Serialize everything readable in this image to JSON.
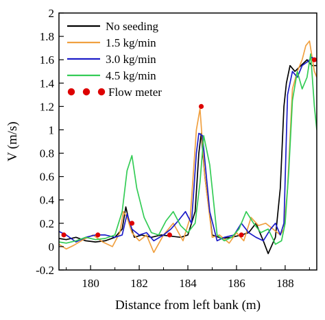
{
  "chart_data": {
    "type": "line",
    "xlabel": "Distance from left bank (m)",
    "ylabel": "V (m/s)",
    "xlim": [
      178.7,
      189.3
    ],
    "ylim": [
      -0.2,
      2.0
    ],
    "x_ticks": [
      180,
      182,
      184,
      186,
      188
    ],
    "x_tick_labels": [
      "180",
      "182",
      "184",
      "186",
      "188"
    ],
    "y_ticks": [
      -0.2,
      0,
      0.2,
      0.4,
      0.6,
      0.8,
      1,
      1.2,
      1.4,
      1.6,
      1.8,
      2
    ],
    "y_tick_labels": [
      "-0.2",
      "0",
      "0.2",
      "0.4",
      "0.6",
      "0.8",
      "1",
      "1.2",
      "1.4",
      "1.6",
      "1.8",
      "2"
    ],
    "grid": false,
    "legend_position": "top-left",
    "series": [
      {
        "name": "No seeding",
        "color": "#000000",
        "x": [
          178.7,
          179.0,
          179.4,
          179.8,
          180.2,
          180.6,
          181.0,
          181.3,
          181.45,
          181.6,
          181.8,
          182.1,
          182.5,
          182.9,
          183.3,
          183.7,
          184.0,
          184.3,
          184.45,
          184.55,
          184.7,
          185.0,
          185.4,
          185.8,
          186.2,
          186.5,
          186.8,
          187.1,
          187.3,
          187.6,
          187.8,
          187.95,
          188.05,
          188.2,
          188.4,
          188.7,
          188.9,
          189.1,
          189.3
        ],
        "y": [
          0.07,
          0.06,
          0.08,
          0.05,
          0.04,
          0.05,
          0.08,
          0.15,
          0.34,
          0.2,
          0.08,
          0.1,
          0.08,
          0.1,
          0.09,
          0.08,
          0.1,
          0.3,
          0.8,
          0.97,
          0.6,
          0.1,
          0.07,
          0.08,
          0.1,
          0.12,
          0.2,
          0.05,
          -0.06,
          0.08,
          0.5,
          1.2,
          1.4,
          1.55,
          1.5,
          1.56,
          1.6,
          1.55,
          1.55
        ]
      },
      {
        "name": "1.5 kg/min",
        "color": "#f0a040",
        "x": [
          178.7,
          179.0,
          179.3,
          179.7,
          180.1,
          180.5,
          180.9,
          181.2,
          181.35,
          181.5,
          181.7,
          182.0,
          182.3,
          182.6,
          183.0,
          183.4,
          183.8,
          184.1,
          184.35,
          184.5,
          184.7,
          185.0,
          185.3,
          185.7,
          186.0,
          186.3,
          186.6,
          186.9,
          187.2,
          187.5,
          187.8,
          187.95,
          188.1,
          188.3,
          188.5,
          188.7,
          188.85,
          189.0,
          189.2,
          189.3
        ],
        "y": [
          0.02,
          -0.02,
          0.01,
          0.06,
          0.1,
          0.04,
          0.0,
          0.12,
          0.3,
          0.25,
          0.12,
          0.05,
          0.1,
          -0.05,
          0.1,
          0.2,
          0.05,
          0.25,
          1.0,
          1.18,
          0.6,
          0.08,
          0.1,
          0.03,
          0.12,
          0.05,
          0.25,
          0.18,
          0.2,
          0.15,
          0.1,
          0.15,
          0.5,
          1.35,
          1.5,
          1.6,
          1.72,
          1.76,
          1.5,
          1.45
        ]
      },
      {
        "name": "3.0 kg/min",
        "color": "#1c1cc8",
        "x": [
          178.7,
          179.0,
          179.4,
          179.8,
          180.2,
          180.6,
          181.0,
          181.3,
          181.5,
          181.7,
          182.0,
          182.3,
          182.6,
          183.0,
          183.3,
          183.6,
          183.9,
          184.15,
          184.35,
          184.45,
          184.6,
          184.9,
          185.2,
          185.5,
          185.9,
          186.2,
          186.5,
          186.8,
          187.1,
          187.4,
          187.6,
          187.8,
          187.95,
          188.1,
          188.3,
          188.5,
          188.7,
          188.9,
          189.1,
          189.3
        ],
        "y": [
          0.13,
          0.1,
          0.04,
          0.08,
          0.1,
          0.1,
          0.08,
          0.1,
          0.28,
          0.15,
          0.1,
          0.12,
          0.05,
          0.1,
          0.15,
          0.22,
          0.3,
          0.2,
          0.8,
          0.97,
          0.95,
          0.3,
          0.05,
          0.08,
          0.1,
          0.2,
          0.12,
          0.08,
          0.05,
          0.15,
          0.2,
          0.1,
          0.2,
          1.3,
          1.5,
          1.45,
          1.55,
          1.58,
          1.62,
          1.6
        ]
      },
      {
        "name": "4.5 kg/min",
        "color": "#33cc55",
        "x": [
          178.7,
          179.0,
          179.4,
          179.8,
          180.2,
          180.6,
          181.0,
          181.3,
          181.5,
          181.7,
          181.9,
          182.2,
          182.5,
          182.8,
          183.1,
          183.4,
          183.7,
          184.0,
          184.3,
          184.5,
          184.65,
          184.9,
          185.2,
          185.5,
          185.8,
          186.1,
          186.4,
          186.7,
          187.0,
          187.3,
          187.6,
          187.85,
          188.0,
          188.15,
          188.3,
          188.5,
          188.7,
          188.9,
          189.05,
          189.2,
          189.3
        ],
        "y": [
          0.04,
          0.03,
          0.05,
          0.08,
          0.06,
          0.07,
          0.1,
          0.3,
          0.65,
          0.78,
          0.5,
          0.25,
          0.12,
          0.1,
          0.22,
          0.3,
          0.18,
          0.12,
          0.2,
          0.55,
          0.95,
          0.7,
          0.1,
          0.05,
          0.08,
          0.15,
          0.3,
          0.2,
          0.12,
          0.15,
          0.02,
          0.05,
          0.2,
          0.65,
          1.25,
          1.5,
          1.35,
          1.45,
          1.65,
          1.2,
          1.0
        ]
      },
      {
        "name": "Flow meter",
        "color": "#dd0000",
        "marker": "dot",
        "x": [
          178.9,
          180.3,
          181.7,
          183.25,
          184.55,
          186.2,
          189.2
        ],
        "y": [
          0.1,
          0.1,
          0.2,
          0.1,
          1.2,
          0.1,
          1.6
        ]
      }
    ]
  }
}
